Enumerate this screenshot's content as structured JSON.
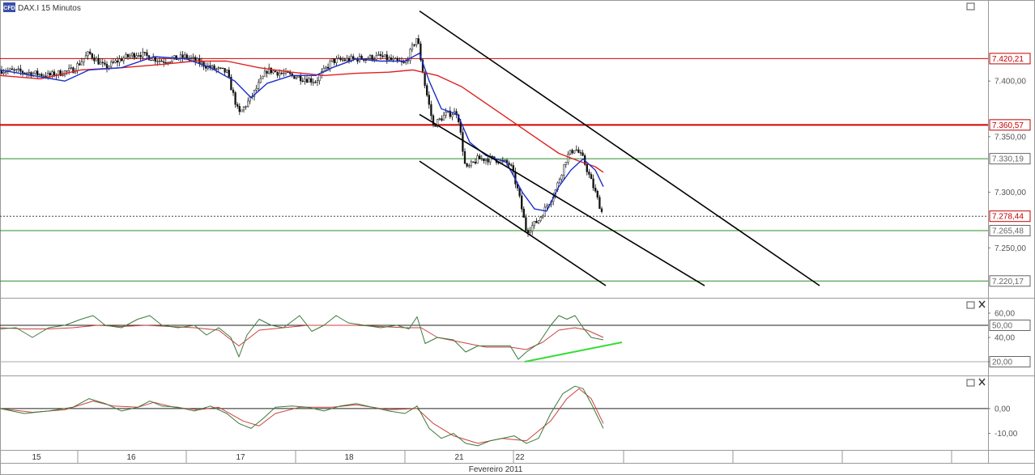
{
  "header": {
    "logo_text": "CFD",
    "title": "DAX.I 15 Minutos"
  },
  "colors": {
    "candle": "#111111",
    "sma_fast": "#1a2fc9",
    "sma_slow": "#e02020",
    "level_red": "#d40000",
    "level_green": "#2e8b2e",
    "current": "#444444",
    "badge_red": "#c00000",
    "badge_gray": "#666666",
    "divergence": "#33dd33",
    "osc_green": "#3a7a3a",
    "osc_red": "#cc4040"
  },
  "chart_data": [
    {
      "type": "candlestick",
      "title": "DAX.I 15 Minutos",
      "ylim": [
        7208,
        7470
      ],
      "y_ticks": [
        7250,
        7300,
        7350,
        7400
      ],
      "y_tick_labels": [
        "7.250,00",
        "7.300,00",
        "7.350,00",
        "7.400,00"
      ],
      "approx_path": [
        [
          0,
          7410
        ],
        [
          30,
          7408
        ],
        [
          60,
          7405
        ],
        [
          90,
          7410
        ],
        [
          110,
          7425
        ],
        [
          130,
          7412
        ],
        [
          150,
          7420
        ],
        [
          170,
          7425
        ],
        [
          200,
          7418
        ],
        [
          230,
          7422
        ],
        [
          260,
          7412
        ],
        [
          280,
          7408
        ],
        [
          295,
          7370
        ],
        [
          310,
          7385
        ],
        [
          330,
          7410
        ],
        [
          360,
          7405
        ],
        [
          390,
          7400
        ],
        [
          410,
          7418
        ],
        [
          440,
          7420
        ],
        [
          470,
          7422
        ],
        [
          500,
          7415
        ],
        [
          515,
          7440
        ],
        [
          525,
          7395
        ],
        [
          535,
          7360
        ],
        [
          550,
          7370
        ],
        [
          565,
          7372
        ],
        [
          575,
          7320
        ],
        [
          590,
          7330
        ],
        [
          610,
          7330
        ],
        [
          630,
          7325
        ],
        [
          640,
          7300
        ],
        [
          650,
          7265
        ],
        [
          665,
          7275
        ],
        [
          685,
          7300
        ],
        [
          700,
          7332
        ],
        [
          710,
          7340
        ],
        [
          720,
          7330
        ],
        [
          735,
          7300
        ],
        [
          745,
          7278
        ]
      ],
      "levels": [
        {
          "value": 7420.21,
          "label": "7.420,21",
          "color": "#d40000",
          "width": 1
        },
        {
          "value": 7360.57,
          "label": "7.360,57",
          "color": "#d40000",
          "width": 2
        },
        {
          "value": 7330.19,
          "label": "7.330,19",
          "color": "#2e8b2e",
          "width": 1
        },
        {
          "value": 7278.44,
          "label": "7.278,44",
          "color": "#444444",
          "width": 1,
          "dashed": true,
          "current": true
        },
        {
          "value": 7265.48,
          "label": "7.265,48",
          "color": "#2e8b2e",
          "width": 1
        },
        {
          "value": 7220.17,
          "label": "7.220,17",
          "color": "#2e8b2e",
          "width": 1
        }
      ],
      "channel_lines": [
        {
          "from": [
            518,
            7463
          ],
          "to": [
            1012,
            7216
          ]
        },
        {
          "from": [
            518,
            7370
          ],
          "to": [
            870,
            7216
          ]
        },
        {
          "from": [
            518,
            7328
          ],
          "to": [
            748,
            7216
          ]
        }
      ],
      "sma_fast": [
        [
          0,
          7410
        ],
        [
          40,
          7405
        ],
        [
          80,
          7400
        ],
        [
          110,
          7410
        ],
        [
          150,
          7412
        ],
        [
          190,
          7422
        ],
        [
          230,
          7420
        ],
        [
          260,
          7412
        ],
        [
          290,
          7400
        ],
        [
          310,
          7385
        ],
        [
          330,
          7398
        ],
        [
          360,
          7405
        ],
        [
          390,
          7405
        ],
        [
          410,
          7412
        ],
        [
          440,
          7420
        ],
        [
          470,
          7418
        ],
        [
          500,
          7418
        ],
        [
          518,
          7425
        ],
        [
          530,
          7400
        ],
        [
          545,
          7375
        ],
        [
          565,
          7370
        ],
        [
          580,
          7345
        ],
        [
          600,
          7333
        ],
        [
          625,
          7327
        ],
        [
          645,
          7300
        ],
        [
          660,
          7285
        ],
        [
          675,
          7283
        ],
        [
          690,
          7305
        ],
        [
          705,
          7320
        ],
        [
          720,
          7330
        ],
        [
          735,
          7320
        ],
        [
          745,
          7305
        ]
      ],
      "sma_slow": [
        [
          0,
          7405
        ],
        [
          50,
          7402
        ],
        [
          100,
          7410
        ],
        [
          150,
          7412
        ],
        [
          200,
          7415
        ],
        [
          240,
          7418
        ],
        [
          280,
          7418
        ],
        [
          320,
          7412
        ],
        [
          360,
          7408
        ],
        [
          400,
          7405
        ],
        [
          440,
          7407
        ],
        [
          480,
          7408
        ],
        [
          510,
          7410
        ],
        [
          540,
          7405
        ],
        [
          570,
          7395
        ],
        [
          600,
          7380
        ],
        [
          630,
          7365
        ],
        [
          660,
          7350
        ],
        [
          690,
          7335
        ],
        [
          715,
          7328
        ],
        [
          735,
          7323
        ],
        [
          745,
          7318
        ]
      ]
    },
    {
      "type": "line",
      "ylim": [
        10,
        70
      ],
      "y_ticks": [
        20,
        40,
        60
      ],
      "y_tick_labels": [
        "20,00",
        "40,00",
        "60,00"
      ],
      "badges": [
        {
          "value": 50,
          "label": "50,00",
          "color": "#666666"
        },
        {
          "value": 20,
          "label": "20,00",
          "color": "#666666"
        }
      ],
      "hlines": [
        50,
        20
      ],
      "series_green": [
        [
          0,
          47
        ],
        [
          20,
          48
        ],
        [
          40,
          40
        ],
        [
          60,
          48
        ],
        [
          80,
          50
        ],
        [
          100,
          55
        ],
        [
          115,
          58
        ],
        [
          130,
          50
        ],
        [
          150,
          48
        ],
        [
          170,
          55
        ],
        [
          185,
          58
        ],
        [
          200,
          50
        ],
        [
          220,
          48
        ],
        [
          240,
          50
        ],
        [
          255,
          42
        ],
        [
          270,
          48
        ],
        [
          285,
          40
        ],
        [
          295,
          24
        ],
        [
          305,
          42
        ],
        [
          320,
          55
        ],
        [
          335,
          50
        ],
        [
          350,
          48
        ],
        [
          370,
          58
        ],
        [
          385,
          45
        ],
        [
          400,
          50
        ],
        [
          415,
          58
        ],
        [
          430,
          52
        ],
        [
          450,
          50
        ],
        [
          470,
          48
        ],
        [
          490,
          50
        ],
        [
          505,
          47
        ],
        [
          515,
          57
        ],
        [
          525,
          35
        ],
        [
          540,
          40
        ],
        [
          560,
          38
        ],
        [
          575,
          28
        ],
        [
          590,
          33
        ],
        [
          610,
          33
        ],
        [
          630,
          33
        ],
        [
          640,
          22
        ],
        [
          650,
          28
        ],
        [
          665,
          35
        ],
        [
          680,
          50
        ],
        [
          690,
          58
        ],
        [
          700,
          55
        ],
        [
          710,
          58
        ],
        [
          720,
          48
        ],
        [
          730,
          40
        ],
        [
          745,
          38
        ]
      ],
      "series_red": [
        [
          0,
          48
        ],
        [
          30,
          47
        ],
        [
          60,
          47
        ],
        [
          90,
          48
        ],
        [
          120,
          50
        ],
        [
          150,
          49
        ],
        [
          180,
          50
        ],
        [
          210,
          49
        ],
        [
          240,
          48
        ],
        [
          270,
          46
        ],
        [
          295,
          33
        ],
        [
          320,
          46
        ],
        [
          350,
          48
        ],
        [
          380,
          50
        ],
        [
          410,
          50
        ],
        [
          440,
          50
        ],
        [
          470,
          49
        ],
        [
          500,
          48
        ],
        [
          520,
          48
        ],
        [
          540,
          40
        ],
        [
          570,
          36
        ],
        [
          600,
          32
        ],
        [
          630,
          32
        ],
        [
          650,
          30
        ],
        [
          670,
          36
        ],
        [
          690,
          46
        ],
        [
          710,
          48
        ],
        [
          725,
          46
        ],
        [
          745,
          40
        ]
      ],
      "divergence_line": {
        "from": [
          648,
          20
        ],
        "to": [
          768,
          36
        ]
      }
    },
    {
      "type": "line",
      "ylim": [
        -16,
        12
      ],
      "y_ticks": [
        -10,
        0
      ],
      "y_tick_labels": [
        "-10,00",
        "0,00"
      ],
      "hlines": [
        0
      ],
      "series_green": [
        [
          0,
          0
        ],
        [
          30,
          -2
        ],
        [
          60,
          -1
        ],
        [
          90,
          0.5
        ],
        [
          110,
          4
        ],
        [
          130,
          2
        ],
        [
          150,
          -1
        ],
        [
          170,
          0.5
        ],
        [
          185,
          3
        ],
        [
          200,
          1
        ],
        [
          220,
          0.5
        ],
        [
          240,
          -1
        ],
        [
          260,
          1
        ],
        [
          280,
          -2
        ],
        [
          295,
          -6
        ],
        [
          310,
          -8
        ],
        [
          325,
          -4
        ],
        [
          340,
          0.5
        ],
        [
          360,
          1
        ],
        [
          380,
          0.5
        ],
        [
          400,
          -1
        ],
        [
          420,
          1
        ],
        [
          440,
          2
        ],
        [
          460,
          0.5
        ],
        [
          480,
          -1
        ],
        [
          500,
          -2
        ],
        [
          515,
          1
        ],
        [
          530,
          -8
        ],
        [
          545,
          -12
        ],
        [
          560,
          -10
        ],
        [
          575,
          -14
        ],
        [
          590,
          -15
        ],
        [
          605,
          -13
        ],
        [
          620,
          -12
        ],
        [
          635,
          -11
        ],
        [
          650,
          -14
        ],
        [
          665,
          -12
        ],
        [
          680,
          -2
        ],
        [
          695,
          6
        ],
        [
          710,
          9
        ],
        [
          720,
          8
        ],
        [
          730,
          2
        ],
        [
          745,
          -8
        ]
      ],
      "series_red": [
        [
          0,
          0
        ],
        [
          40,
          -1.5
        ],
        [
          80,
          -0.5
        ],
        [
          115,
          3
        ],
        [
          140,
          1
        ],
        [
          170,
          0.5
        ],
        [
          190,
          2.5
        ],
        [
          215,
          0.5
        ],
        [
          245,
          -0.5
        ],
        [
          270,
          0.5
        ],
        [
          300,
          -5
        ],
        [
          320,
          -7
        ],
        [
          340,
          -2
        ],
        [
          370,
          0.5
        ],
        [
          410,
          0.5
        ],
        [
          440,
          1.5
        ],
        [
          480,
          -0.5
        ],
        [
          515,
          0
        ],
        [
          535,
          -6
        ],
        [
          560,
          -11
        ],
        [
          590,
          -14
        ],
        [
          620,
          -12
        ],
        [
          650,
          -13
        ],
        [
          680,
          -5
        ],
        [
          700,
          4
        ],
        [
          715,
          8
        ],
        [
          730,
          4
        ],
        [
          745,
          -6
        ]
      ]
    }
  ],
  "x_axis": {
    "day_labels": [
      {
        "label": "15",
        "pos": 45
      },
      {
        "label": "16",
        "pos": 162
      },
      {
        "label": "17",
        "pos": 297
      },
      {
        "label": "18",
        "pos": 431
      },
      {
        "label": "21",
        "pos": 567
      },
      {
        "label": "22",
        "pos": 642
      }
    ],
    "month_label": "Fevereiro 2011"
  }
}
